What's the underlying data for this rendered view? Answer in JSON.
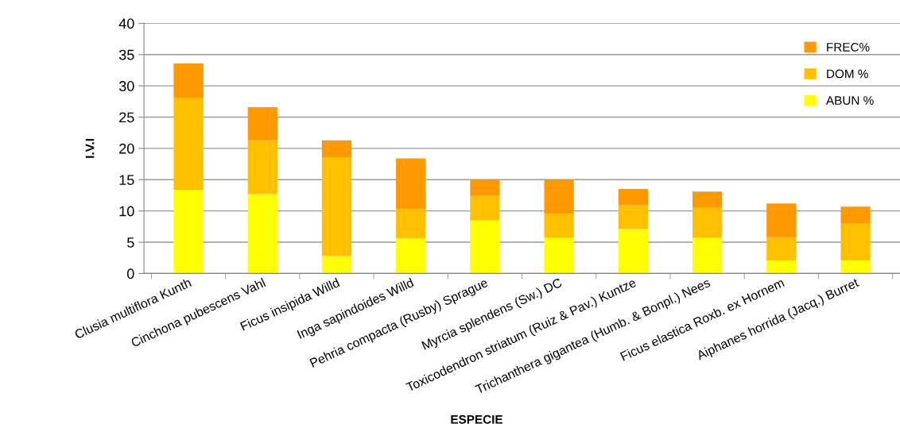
{
  "chart_data": {
    "type": "bar",
    "stacked": true,
    "xlabel": "ESPECIE",
    "ylabel": "I.V.I",
    "categories": [
      "Clusia multiflora Kunth",
      "Cinchona pubescens Vahl",
      "Ficus insipida Willd",
      "Inga sapindoides Willd",
      "Pehria compacta (Rusby) Sprague",
      "Myrcia splendens (Sw.) DC",
      "Toxicodendron striatum (Ruiz & Pav.) Kuntze",
      "Trichanthera gigantea (Humb. & Bonpl.) Nees",
      "Ficus elastica Roxb. ex Hornem",
      "Aiphanes horrida (Jacq.) Burret"
    ],
    "series": [
      {
        "name": "ABUN %",
        "color": "#ffff00",
        "values": [
          13.4,
          12.7,
          2.8,
          5.6,
          8.5,
          5.7,
          7.1,
          5.7,
          2.1,
          2.1
        ]
      },
      {
        "name": "DOM %",
        "color": "#ffc000",
        "values": [
          14.7,
          8.6,
          15.8,
          4.7,
          3.9,
          3.8,
          3.8,
          4.8,
          3.7,
          5.9
        ]
      },
      {
        "name": "FREC%",
        "color": "#ff9900",
        "values": [
          5.5,
          5.3,
          2.7,
          8.1,
          2.6,
          5.5,
          2.6,
          2.6,
          5.4,
          2.7
        ]
      }
    ],
    "ylim": [
      0,
      40
    ],
    "yticks": [
      0,
      5,
      10,
      15,
      20,
      25,
      30,
      35,
      40
    ],
    "grid": "y",
    "legend": "top right"
  }
}
